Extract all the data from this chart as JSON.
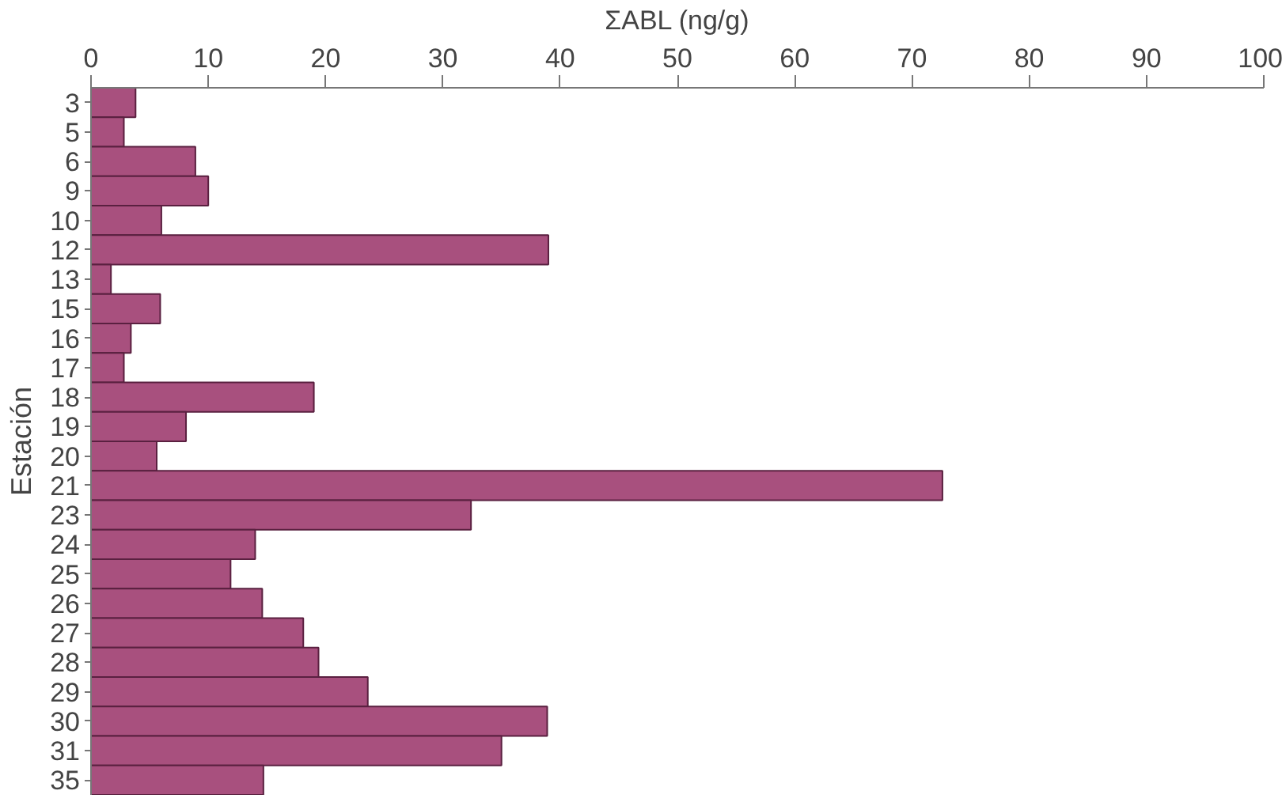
{
  "chart_data": {
    "type": "bar",
    "orientation": "horizontal",
    "xlabel": "ΣABL (ng/g)",
    "ylabel": "Estación",
    "categories": [
      "3",
      "5",
      "6",
      "9",
      "10",
      "12",
      "13",
      "15",
      "16",
      "17",
      "18",
      "19",
      "20",
      "21",
      "23",
      "24",
      "25",
      "26",
      "27",
      "28",
      "29",
      "30",
      "31",
      "35"
    ],
    "values": [
      3.8,
      2.8,
      8.9,
      10,
      6,
      39,
      1.7,
      5.9,
      3.4,
      2.8,
      19,
      8.1,
      5.6,
      72.6,
      32.4,
      14,
      11.9,
      14.6,
      18.1,
      19.4,
      23.6,
      38.9,
      35,
      14.7
    ],
    "color": "#a8507e",
    "xlim": [
      0,
      100
    ],
    "xticks": [
      0,
      10,
      20,
      30,
      40,
      50,
      60,
      70,
      80,
      90,
      100
    ],
    "grid": false
  }
}
